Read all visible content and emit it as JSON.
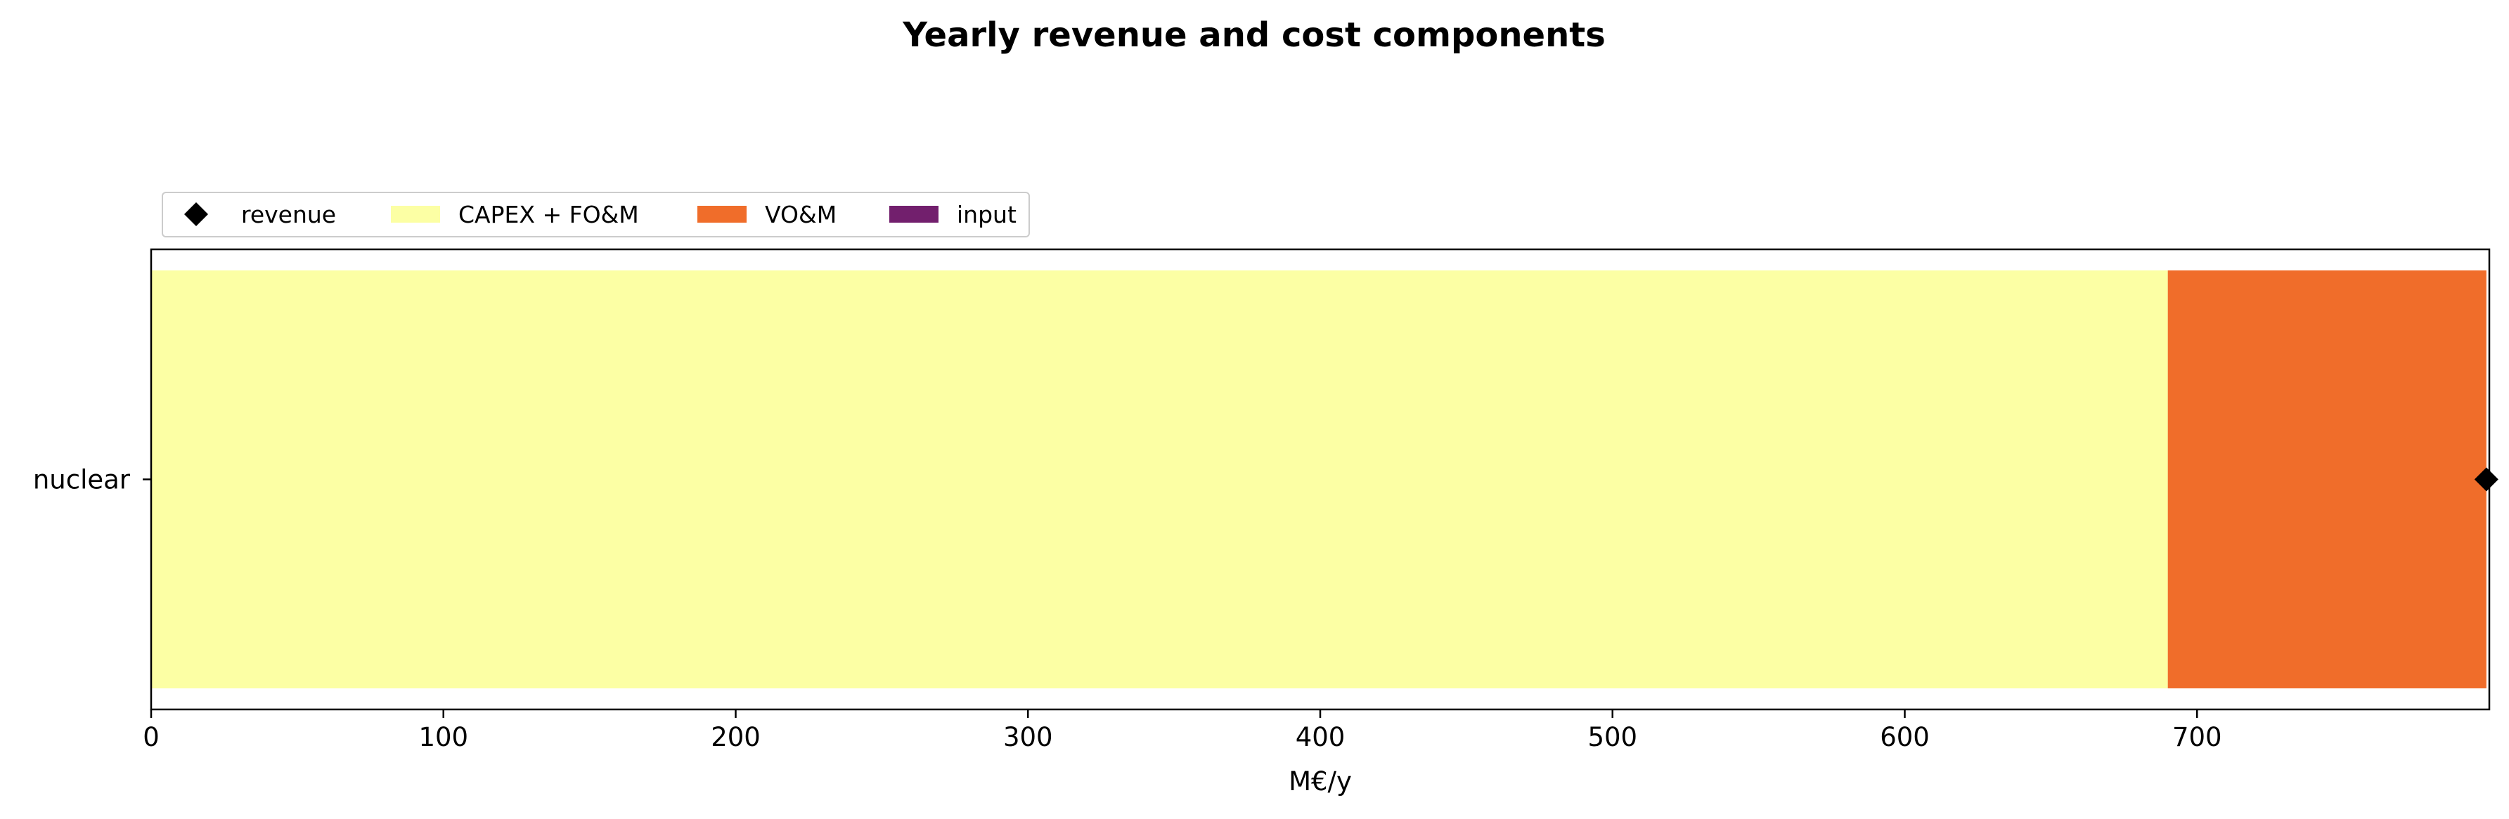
{
  "chart_data": {
    "type": "bar",
    "orientation": "horizontal",
    "stacked": true,
    "title": "Yearly revenue and cost components",
    "xlabel": "M€/y",
    "ylabel": "",
    "categories": [
      "nuclear"
    ],
    "xlim": [
      0,
      800
    ],
    "xticks": [
      0,
      100,
      200,
      300,
      400,
      500,
      600,
      700
    ],
    "grid": false,
    "legend_position": "top-left, above plot",
    "series": [
      {
        "name": "CAPEX + FO&M",
        "values": [
          690
        ],
        "color": "#fcffa4"
      },
      {
        "name": "VO&M",
        "values": [
          109
        ],
        "color": "#f06d2a"
      },
      {
        "name": "input",
        "values": [
          0
        ],
        "color": "#721f6d"
      }
    ],
    "markers": [
      {
        "name": "revenue",
        "values": [
          799
        ],
        "color": "#000000",
        "marker": "diamond"
      }
    ],
    "legend": [
      "revenue",
      "CAPEX + FO&M",
      "VO&M",
      "input"
    ]
  }
}
